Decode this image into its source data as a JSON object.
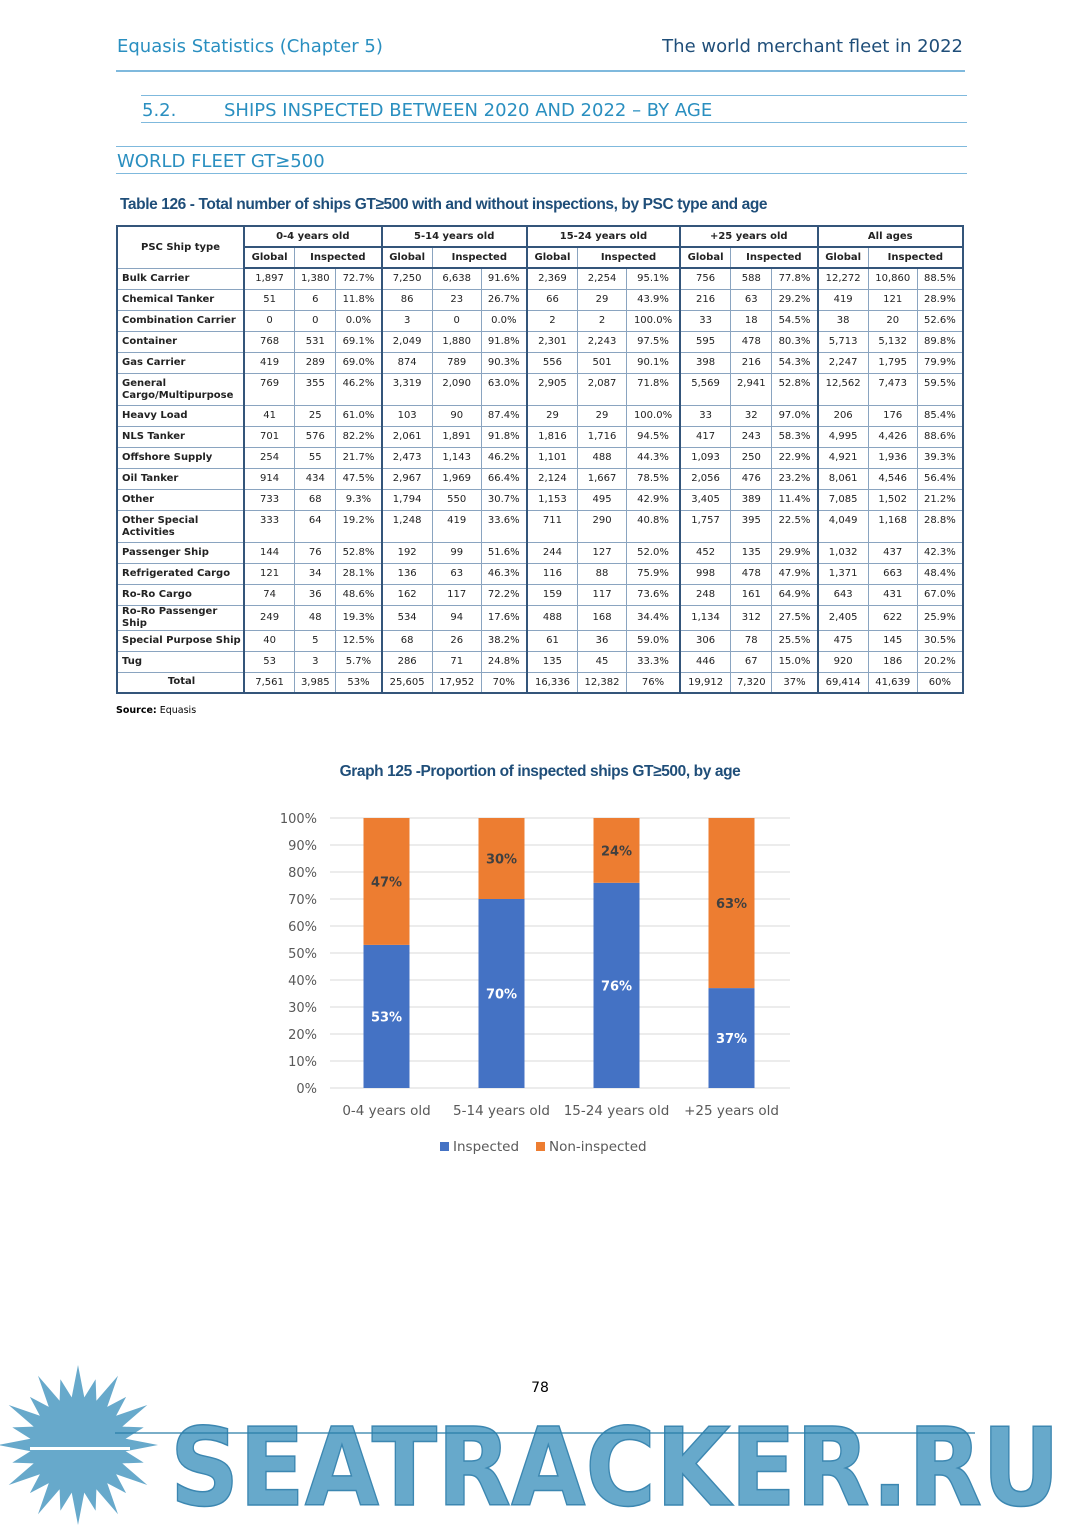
{
  "header": {
    "left": "Equasis Statistics (Chapter 5)",
    "right": "The world merchant fleet in 2022"
  },
  "section": {
    "number": "5.2.",
    "title": "SHIPS INSPECTED BETWEEN 2020 AND 2022 – BY AGE"
  },
  "subsection": "WORLD FLEET GT≥500",
  "table": {
    "title": "Table 126 - Total number of ships GT≥500 with and without inspections, by PSC type and age",
    "first_header": "PSC Ship type",
    "groups": [
      "0-4 years old",
      "5-14 years old",
      "15-24 years old",
      "+25 years old",
      "All ages"
    ],
    "sub_global": "Global",
    "sub_inspected": "Inspected",
    "rows": [
      [
        "Bulk Carrier",
        "1,897",
        "1,380",
        "72.7%",
        "7,250",
        "6,638",
        "91.6%",
        "2,369",
        "2,254",
        "95.1%",
        "756",
        "588",
        "77.8%",
        "12,272",
        "10,860",
        "88.5%"
      ],
      [
        "Chemical Tanker",
        "51",
        "6",
        "11.8%",
        "86",
        "23",
        "26.7%",
        "66",
        "29",
        "43.9%",
        "216",
        "63",
        "29.2%",
        "419",
        "121",
        "28.9%"
      ],
      [
        "Combination Carrier",
        "0",
        "0",
        "0.0%",
        "3",
        "0",
        "0.0%",
        "2",
        "2",
        "100.0%",
        "33",
        "18",
        "54.5%",
        "38",
        "20",
        "52.6%"
      ],
      [
        "Container",
        "768",
        "531",
        "69.1%",
        "2,049",
        "1,880",
        "91.8%",
        "2,301",
        "2,243",
        "97.5%",
        "595",
        "478",
        "80.3%",
        "5,713",
        "5,132",
        "89.8%"
      ],
      [
        "Gas Carrier",
        "419",
        "289",
        "69.0%",
        "874",
        "789",
        "90.3%",
        "556",
        "501",
        "90.1%",
        "398",
        "216",
        "54.3%",
        "2,247",
        "1,795",
        "79.9%"
      ],
      [
        "General Cargo/Multipurpose",
        "769",
        "355",
        "46.2%",
        "3,319",
        "2,090",
        "63.0%",
        "2,905",
        "2,087",
        "71.8%",
        "5,569",
        "2,941",
        "52.8%",
        "12,562",
        "7,473",
        "59.5%"
      ],
      [
        "Heavy Load",
        "41",
        "25",
        "61.0%",
        "103",
        "90",
        "87.4%",
        "29",
        "29",
        "100.0%",
        "33",
        "32",
        "97.0%",
        "206",
        "176",
        "85.4%"
      ],
      [
        "NLS Tanker",
        "701",
        "576",
        "82.2%",
        "2,061",
        "1,891",
        "91.8%",
        "1,816",
        "1,716",
        "94.5%",
        "417",
        "243",
        "58.3%",
        "4,995",
        "4,426",
        "88.6%"
      ],
      [
        "Offshore Supply",
        "254",
        "55",
        "21.7%",
        "2,473",
        "1,143",
        "46.2%",
        "1,101",
        "488",
        "44.3%",
        "1,093",
        "250",
        "22.9%",
        "4,921",
        "1,936",
        "39.3%"
      ],
      [
        "Oil Tanker",
        "914",
        "434",
        "47.5%",
        "2,967",
        "1,969",
        "66.4%",
        "2,124",
        "1,667",
        "78.5%",
        "2,056",
        "476",
        "23.2%",
        "8,061",
        "4,546",
        "56.4%"
      ],
      [
        "Other",
        "733",
        "68",
        "9.3%",
        "1,794",
        "550",
        "30.7%",
        "1,153",
        "495",
        "42.9%",
        "3,405",
        "389",
        "11.4%",
        "7,085",
        "1,502",
        "21.2%"
      ],
      [
        "Other Special Activities",
        "333",
        "64",
        "19.2%",
        "1,248",
        "419",
        "33.6%",
        "711",
        "290",
        "40.8%",
        "1,757",
        "395",
        "22.5%",
        "4,049",
        "1,168",
        "28.8%"
      ],
      [
        "Passenger Ship",
        "144",
        "76",
        "52.8%",
        "192",
        "99",
        "51.6%",
        "244",
        "127",
        "52.0%",
        "452",
        "135",
        "29.9%",
        "1,032",
        "437",
        "42.3%"
      ],
      [
        "Refrigerated Cargo",
        "121",
        "34",
        "28.1%",
        "136",
        "63",
        "46.3%",
        "116",
        "88",
        "75.9%",
        "998",
        "478",
        "47.9%",
        "1,371",
        "663",
        "48.4%"
      ],
      [
        "Ro-Ro Cargo",
        "74",
        "36",
        "48.6%",
        "162",
        "117",
        "72.2%",
        "159",
        "117",
        "73.6%",
        "248",
        "161",
        "64.9%",
        "643",
        "431",
        "67.0%"
      ],
      [
        "Ro-Ro Passenger Ship",
        "249",
        "48",
        "19.3%",
        "534",
        "94",
        "17.6%",
        "488",
        "168",
        "34.4%",
        "1,134",
        "312",
        "27.5%",
        "2,405",
        "622",
        "25.9%"
      ],
      [
        "Special Purpose Ship",
        "40",
        "5",
        "12.5%",
        "68",
        "26",
        "38.2%",
        "61",
        "36",
        "59.0%",
        "306",
        "78",
        "25.5%",
        "475",
        "145",
        "30.5%"
      ],
      [
        "Tug",
        "53",
        "3",
        "5.7%",
        "286",
        "71",
        "24.8%",
        "135",
        "45",
        "33.3%",
        "446",
        "67",
        "15.0%",
        "920",
        "186",
        "20.2%"
      ]
    ],
    "total": [
      "Total",
      "7,561",
      "3,985",
      "53%",
      "25,605",
      "17,952",
      "70%",
      "16,336",
      "12,382",
      "76%",
      "19,912",
      "7,320",
      "37%",
      "69,414",
      "41,639",
      "60%"
    ],
    "source_label": "Source:",
    "source": "Equasis"
  },
  "chart_data": {
    "type": "bar",
    "stacked": true,
    "title": "Graph 125 -Proportion of inspected ships GT≥500, by age",
    "categories": [
      "0-4 years old",
      "5-14 years old",
      "15-24 years old",
      "+25 years old"
    ],
    "series": [
      {
        "name": "Inspected",
        "values": [
          53,
          70,
          76,
          37
        ],
        "labels": [
          "53%",
          "70%",
          "76%",
          "37%"
        ],
        "color": "#4472c4"
      },
      {
        "name": "Non-inspected",
        "values": [
          47,
          30,
          24,
          63
        ],
        "labels": [
          "47%",
          "30%",
          "24%",
          "63%"
        ],
        "color": "#ed7d31"
      }
    ],
    "ylim": [
      0,
      100
    ],
    "yticks": [
      "0%",
      "10%",
      "20%",
      "30%",
      "40%",
      "50%",
      "60%",
      "70%",
      "80%",
      "90%",
      "100%"
    ],
    "grid": true,
    "legend": "bottom"
  },
  "footer": {
    "page": "78",
    "watermark": "SEATRACKER.RU"
  }
}
